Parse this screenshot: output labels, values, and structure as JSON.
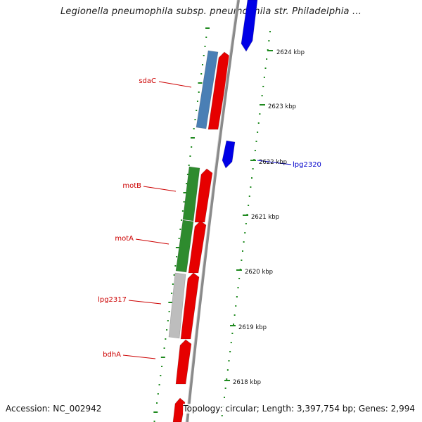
{
  "title": "Legionella pneumophila subsp. pneumophila str. Philadelphia ...",
  "footer": {
    "accession": "Accession: NC_002942",
    "topology": "Topology: circular; Length: 3,397,754 bp; Genes: 2,994"
  },
  "colors": {
    "backbone": "#8a8a8a",
    "forward_cds": "#e60000",
    "reverse_cds": "#0000e6",
    "gene_label": "#cc0000",
    "ruler_ticks": "#1f8a1f",
    "sdaC": "#4a7fb5",
    "motB": "#2e8b2e",
    "motA": "#2e8b2e",
    "lpg2317": "#bdbdbd",
    "lpg2320_label": "#0000cc"
  },
  "ruler": [
    {
      "label": "2624 kbp",
      "kbp": 2624
    },
    {
      "label": "2623 kbp",
      "kbp": 2623
    },
    {
      "label": "2622 kbp",
      "kbp": 2622
    },
    {
      "label": "2621 kbp",
      "kbp": 2621
    },
    {
      "label": "2620 kbp",
      "kbp": 2620
    },
    {
      "label": "2619 kbp",
      "kbp": 2619
    },
    {
      "label": "2618 kbp",
      "kbp": 2618
    }
  ],
  "genes": [
    {
      "name": "sdaC",
      "strand": "inner",
      "feature_color": "sdaC"
    },
    {
      "name": "motB",
      "strand": "inner",
      "feature_color": "motB"
    },
    {
      "name": "motA",
      "strand": "inner",
      "feature_color": "motA"
    },
    {
      "name": "lpg2317",
      "strand": "inner",
      "feature_color": "lpg2317"
    },
    {
      "name": "bdhA",
      "strand": "inner",
      "feature_color": "forward_cds"
    },
    {
      "name": "lpg2320",
      "strand": "outer",
      "feature_color": "reverse_cds"
    }
  ]
}
